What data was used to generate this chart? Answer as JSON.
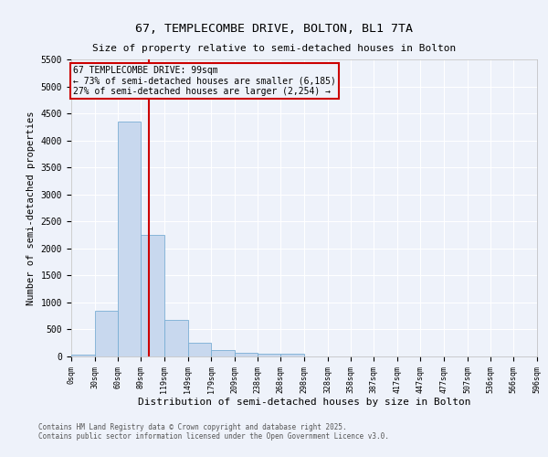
{
  "title_line1": "67, TEMPLECOMBE DRIVE, BOLTON, BL1 7TA",
  "title_line2": "Size of property relative to semi-detached houses in Bolton",
  "xlabel": "Distribution of semi-detached houses by size in Bolton",
  "ylabel": "Number of semi-detached properties",
  "property_label": "67 TEMPLECOMBE DRIVE: 99sqm",
  "smaller_text": "← 73% of semi-detached houses are smaller (6,185)",
  "larger_text": "27% of semi-detached houses are larger (2,254) →",
  "property_line_x": 99,
  "bin_edges": [
    0,
    30,
    60,
    89,
    119,
    149,
    179,
    209,
    238,
    268,
    298,
    328,
    358,
    387,
    417,
    447,
    477,
    507,
    536,
    566,
    596
  ],
  "bar_heights": [
    30,
    850,
    4350,
    2250,
    680,
    250,
    115,
    70,
    55,
    50,
    5,
    3,
    2,
    1,
    1,
    1,
    0,
    0,
    0,
    0
  ],
  "bar_color": "#c8d8ee",
  "bar_edgecolor": "#7aaed4",
  "line_color": "#cc0000",
  "background_color": "#eef2fa",
  "grid_color": "#ffffff",
  "ylim": [
    0,
    5500
  ],
  "yticks": [
    0,
    500,
    1000,
    1500,
    2000,
    2500,
    3000,
    3500,
    4000,
    4500,
    5000,
    5500
  ],
  "footer_line1": "Contains HM Land Registry data © Crown copyright and database right 2025.",
  "footer_line2": "Contains public sector information licensed under the Open Government Licence v3.0."
}
